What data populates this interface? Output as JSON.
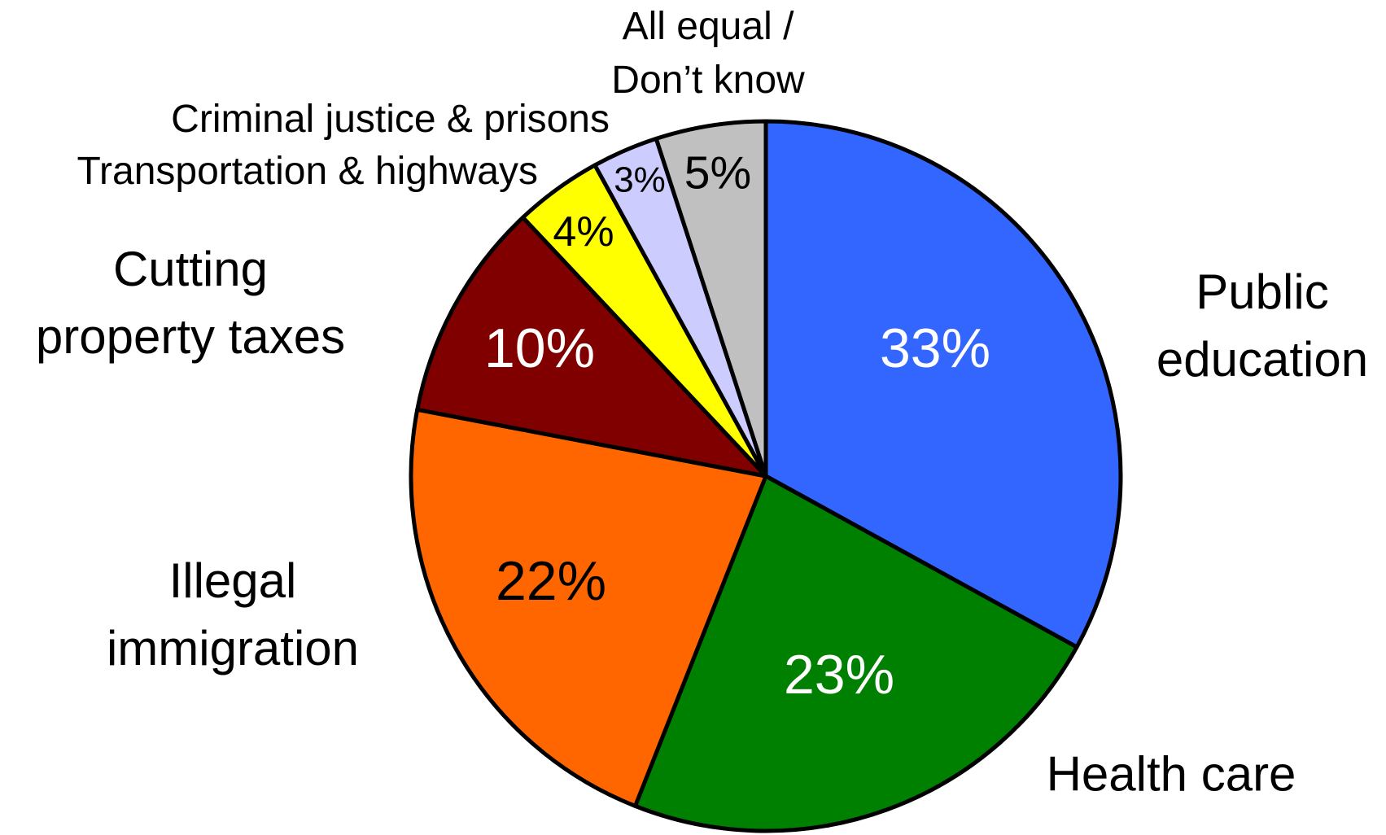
{
  "chart_data": {
    "type": "pie",
    "categories": [
      "Public\neducation",
      "Health care",
      "Illegal\nimmigration",
      "Cutting\nproperty taxes",
      "Transportation & highways",
      "Criminal justice & prisons",
      "All equal /\nDon’t know"
    ],
    "values": [
      33,
      23,
      22,
      10,
      4,
      3,
      5
    ],
    "value_labels": [
      "33%",
      "23%",
      "22%",
      "10%",
      "4%",
      "3%",
      "5%"
    ],
    "colors": [
      "#3366ff",
      "#008000",
      "#ff6600",
      "#800000",
      "#ffff00",
      "#ccccff",
      "#c0c0c0"
    ]
  }
}
